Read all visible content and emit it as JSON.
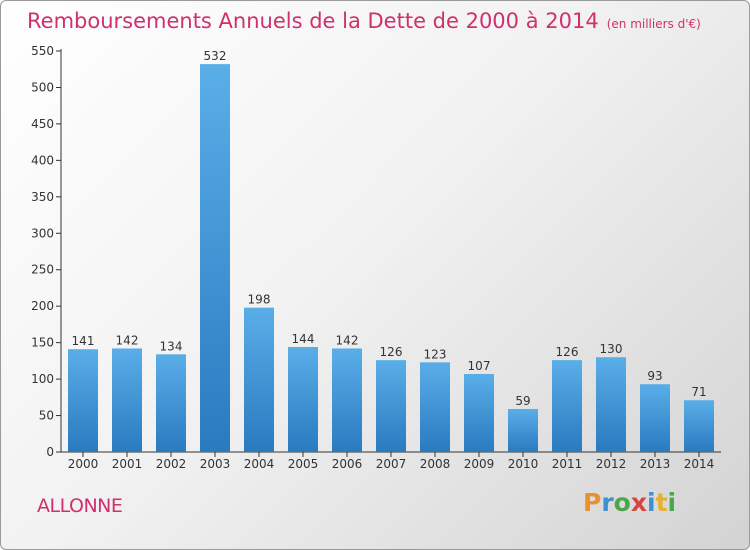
{
  "title": "Remboursements Annuels de la Dette de 2000 à 2014",
  "unit": "(en milliers d'€)",
  "town": "ALLONNE",
  "brand": [
    "P",
    "r",
    "o",
    "x",
    "i",
    "t",
    "i"
  ],
  "colors": {
    "title": "#d0306c",
    "bar_top": "#5aaee8",
    "bar_bottom": "#2a7ac0"
  },
  "chart_data": {
    "type": "bar",
    "title": "Remboursements Annuels de la Dette de 2000 à 2014",
    "categories": [
      "2000",
      "2001",
      "2002",
      "2003",
      "2004",
      "2005",
      "2006",
      "2007",
      "2008",
      "2009",
      "2010",
      "2011",
      "2012",
      "2013",
      "2014"
    ],
    "values": [
      141,
      142,
      134,
      532,
      198,
      144,
      142,
      126,
      123,
      107,
      59,
      126,
      130,
      93,
      71
    ],
    "ylim": [
      0,
      550
    ],
    "yticks": [
      0,
      50,
      100,
      150,
      200,
      250,
      300,
      350,
      400,
      450,
      500,
      550
    ],
    "grid": false,
    "xlabel": "",
    "ylabel": ""
  }
}
